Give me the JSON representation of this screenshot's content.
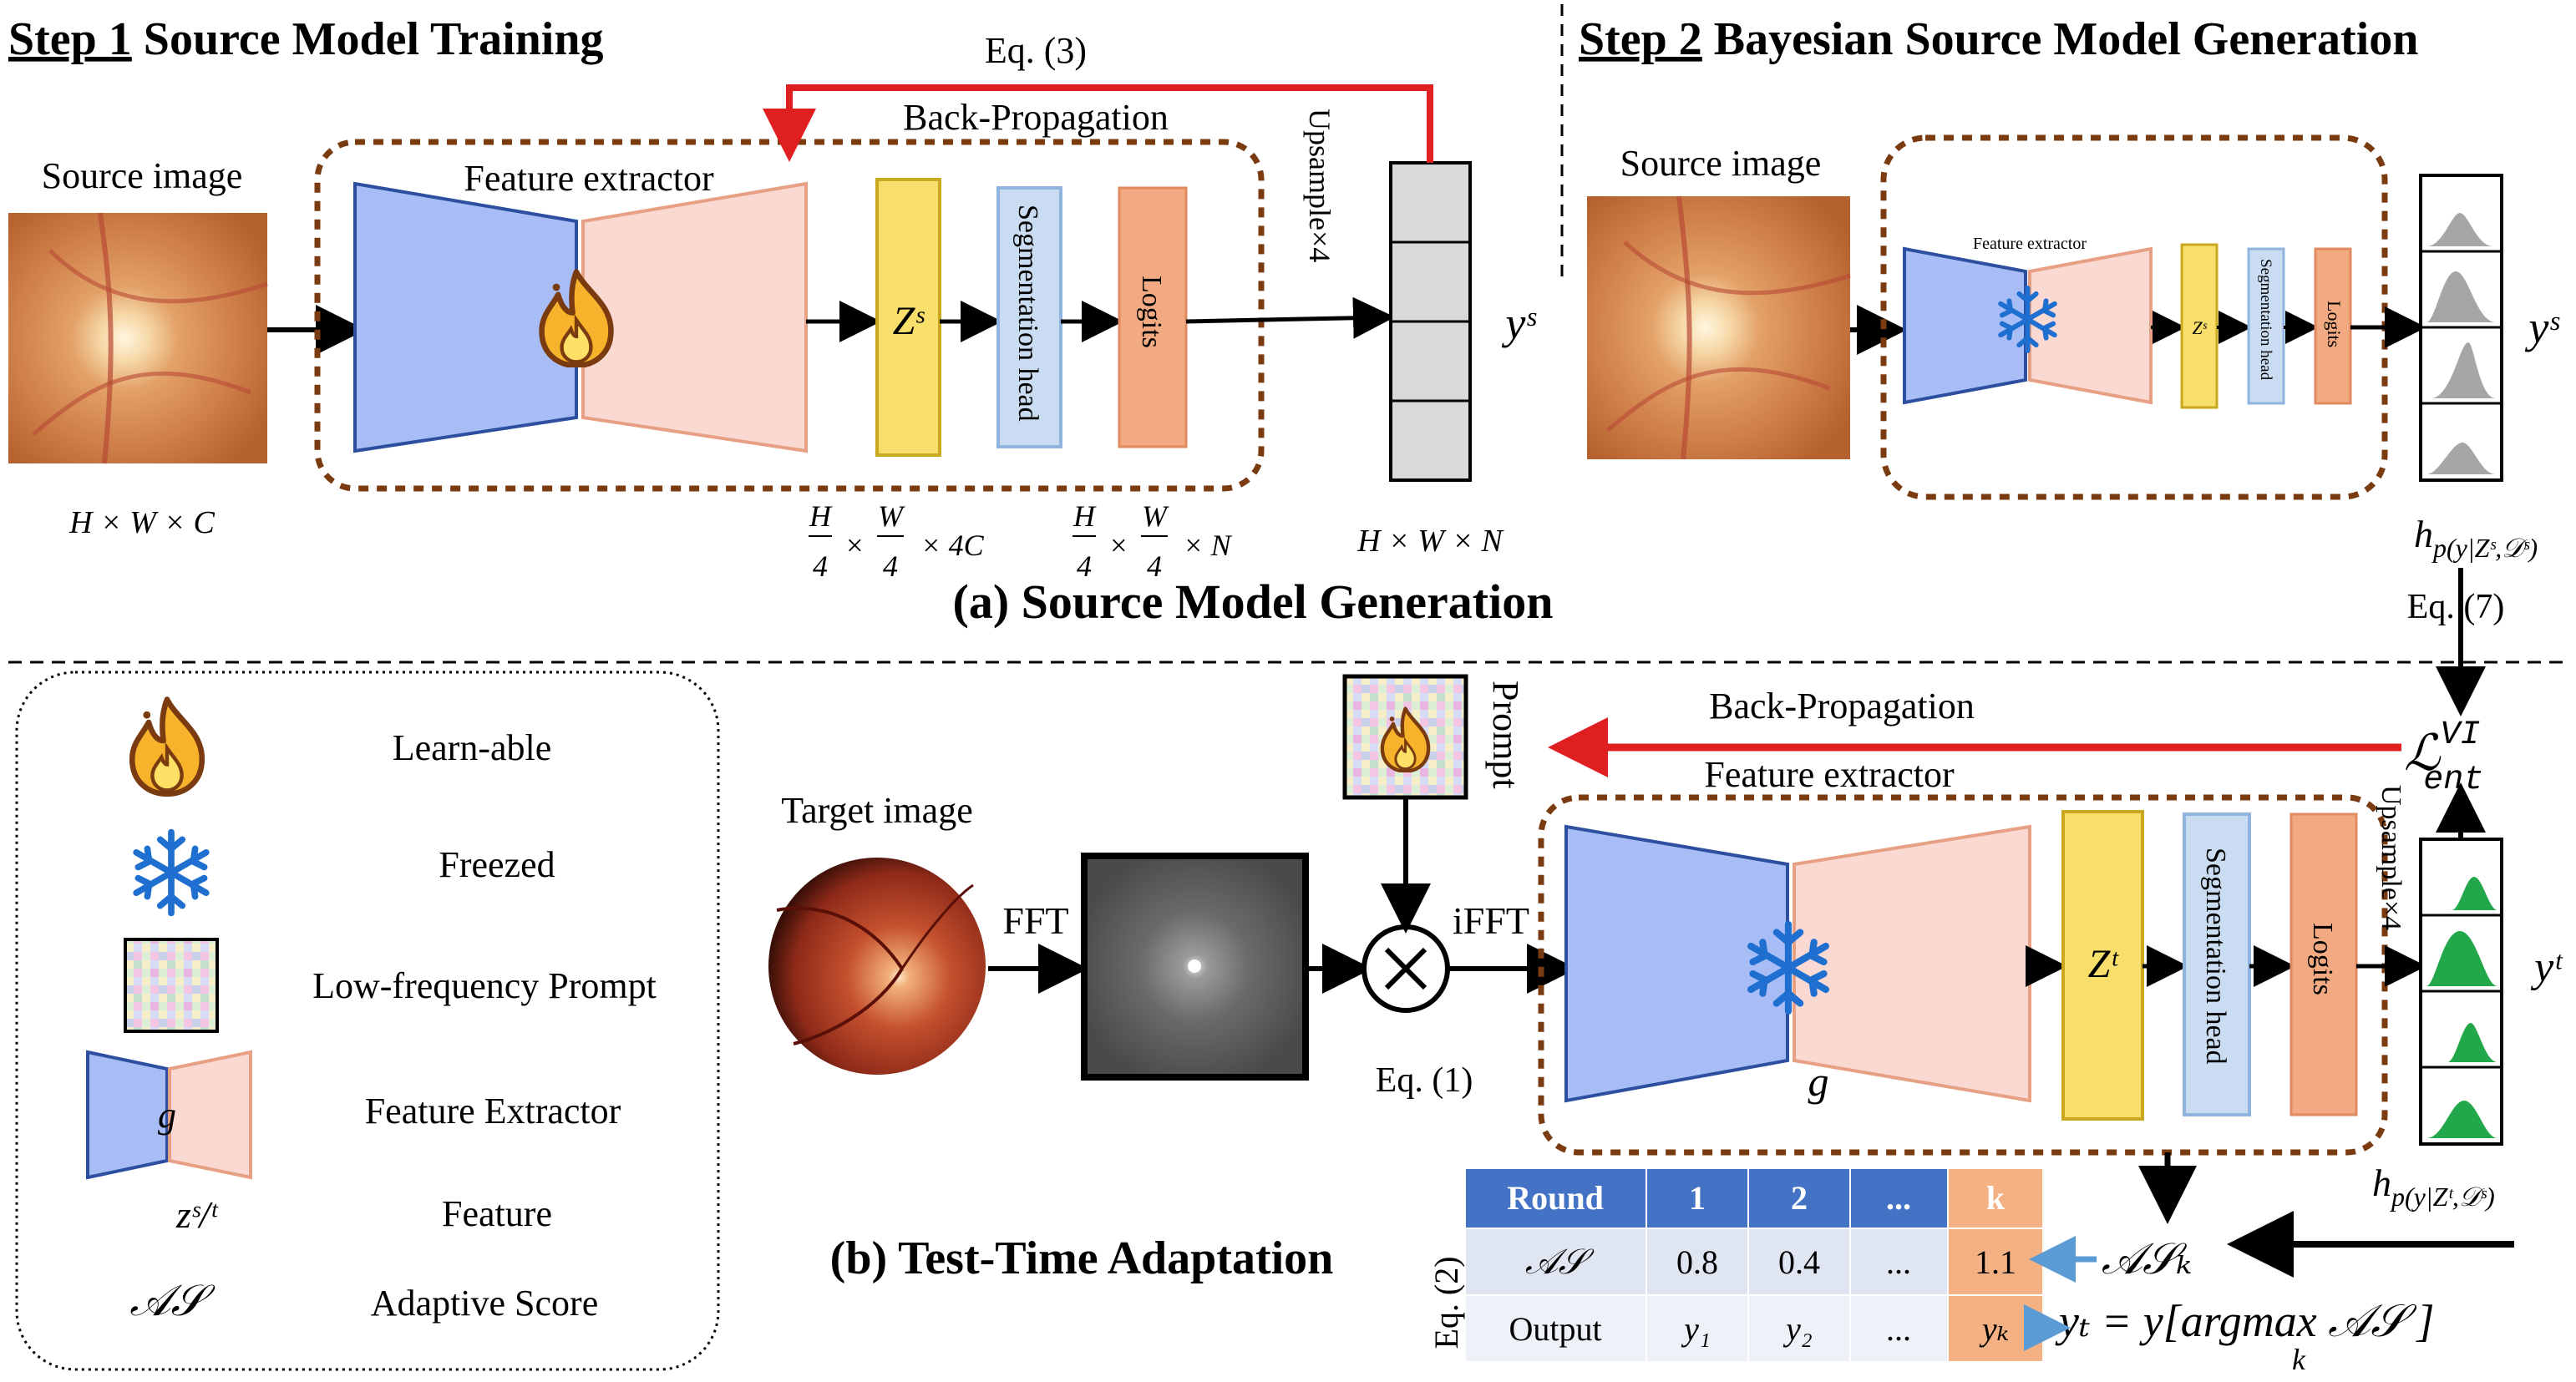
{
  "step1": {
    "title_step": "Step 1",
    "title_rest": " Source Model Training",
    "source_image_label": "Source image",
    "feature_extractor_label": "Feature extractor",
    "eq3": "Eq. (3)",
    "backprop": "Back-Propagation",
    "upsample": "Upsample×4",
    "z_label": "Zˢ",
    "seg_head": "Segmentation head",
    "logits": "Logits",
    "y_label": "yˢ",
    "dim_input": "H × W × C",
    "dim_feature": "H/4 × W/4 × 4C",
    "dim_logits": "H/4 × W/4 × N",
    "dim_output": "H × W × N"
  },
  "step2": {
    "title_step": "Step 2",
    "title_rest": " Bayesian Source Model Generation",
    "source_image_label": "Source image",
    "feature_extractor_label": "Feature extractor",
    "z_label": "Zˢ",
    "seg_head": "Segmentation head",
    "logits": "Logits",
    "y_label": "yˢ",
    "h_label_main": "h",
    "h_label_sub": "p(y|Zˢ,𝒟ˢ)",
    "eq7": "Eq. (7)"
  },
  "section_a": "(a) Source Model Generation",
  "section_b": "(b) Test-Time Adaptation",
  "legend": {
    "items": [
      {
        "icon": "flame-icon",
        "label": "Learn-able"
      },
      {
        "icon": "snowflake-icon",
        "label": "Freezed"
      },
      {
        "icon": "prompt-icon",
        "label": "Low-frequency Prompt"
      },
      {
        "icon": "feature-extractor-icon",
        "label": "Feature Extractor"
      },
      {
        "icon": "feature-symbol",
        "label": "Feature"
      },
      {
        "icon": "as-symbol",
        "label": "Adaptive Score"
      }
    ],
    "g_symbol": "g",
    "z_symbol": "zˢ/ᵗ",
    "as_symbol": "𝒜𝒮"
  },
  "tta": {
    "target_image_label": "Target image",
    "fft": "FFT",
    "ifft": "iFFT",
    "eq1": "Eq. (1)",
    "prompt": "Prompt",
    "backprop": "Back-Propagation",
    "feature_extractor_label": "Feature extractor",
    "g_symbol": "g",
    "z_label": "Zᵗ",
    "seg_head": "Segmentation head",
    "logits": "Logits",
    "upsample": "Upsample×4",
    "y_label": "yᵗ",
    "loss_main": "ℒ",
    "loss_sup": "VI",
    "loss_sub": "ent",
    "h_label_main": "h",
    "h_label_sub": "p(y|Zᵗ,𝒟ˢ)",
    "as_k": "𝒜𝒮ₖ",
    "yt_eq_left": "yₜ = y[argmax 𝒜𝒮 ]",
    "yt_eq_sub": "k",
    "eq2": "Eq. (2)"
  },
  "table": {
    "headers": [
      "Round",
      "1",
      "2",
      "...",
      "k"
    ],
    "rows": [
      [
        "𝒜𝒮",
        "0.8",
        "0.4",
        "...",
        "1.1"
      ],
      [
        "Output",
        "y₁",
        "y₂",
        "...",
        "yₖ"
      ]
    ]
  },
  "colors": {
    "encoder_blue": "#a8bdf5",
    "decoder_pink": "#fbd9d3",
    "feature_yellow": "#f8de6a",
    "seg_blue": "#c9dcf1",
    "logits_orange": "#f2aa82",
    "dashed_brown": "#7a3b10",
    "arrow_red": "#e02020",
    "table_header_blue": "#4472c4",
    "table_row_light": "#dfe6f2",
    "table_k_orange": "#f4b183",
    "green_peak": "#22a84a",
    "gray_peak": "#a6a6a6"
  }
}
